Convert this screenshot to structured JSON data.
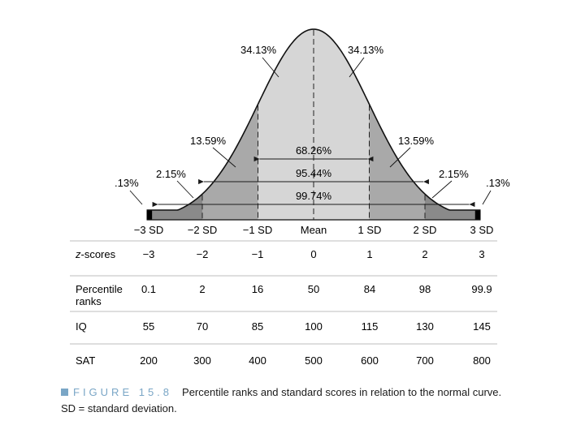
{
  "regions": [
    {
      "from": -3.0,
      "to": -2.9,
      "color": "#000000"
    },
    {
      "from": -2.9,
      "to": -2.0,
      "color": "#8a8a8a"
    },
    {
      "from": -2.0,
      "to": -1.0,
      "color": "#a9a9a9"
    },
    {
      "from": -1.0,
      "to": 1.0,
      "color": "#d6d6d6"
    },
    {
      "from": 1.0,
      "to": 2.0,
      "color": "#a9a9a9"
    },
    {
      "from": 2.0,
      "to": 2.9,
      "color": "#8a8a8a"
    },
    {
      "from": 2.9,
      "to": 3.0,
      "color": "#000000"
    }
  ],
  "dashed_lines": [
    -2,
    -1,
    0,
    1,
    2
  ],
  "region_labels": {
    "left_34": "34.13%",
    "right_34": "34.13%",
    "left_1359": "13.59%",
    "right_1359": "13.59%",
    "left_215": "2.15%",
    "right_215": "2.15%",
    "left_013": ".13%",
    "right_013": ".13%"
  },
  "spans": [
    {
      "label": "68.26%",
      "from": -1,
      "to": 1
    },
    {
      "label": "95.44%",
      "from": -2,
      "to": 2
    },
    {
      "label": "99.74%",
      "from": -3,
      "to": 3
    }
  ],
  "axis_ticks": [
    "−3 SD",
    "−2 SD",
    "−1 SD",
    "Mean",
    "1 SD",
    "2 SD",
    "3 SD"
  ],
  "table": {
    "rows": [
      {
        "label": "z-scores",
        "values": [
          "−3",
          "−2",
          "−1",
          "0",
          "1",
          "2",
          "3"
        ]
      },
      {
        "label": "Percentile ranks",
        "values": [
          "0.1",
          "2",
          "16",
          "50",
          "84",
          "98",
          "99.9"
        ]
      },
      {
        "label": "IQ",
        "values": [
          "55",
          "70",
          "85",
          "100",
          "115",
          "130",
          "145"
        ]
      },
      {
        "label": "SAT",
        "values": [
          "200",
          "300",
          "400",
          "500",
          "600",
          "700",
          "800"
        ]
      }
    ]
  },
  "caption": {
    "figure_label": "FIGURE 15.8",
    "line1": "Percentile ranks and standard scores in relation to the normal curve.",
    "line2": "SD = standard deviation."
  }
}
